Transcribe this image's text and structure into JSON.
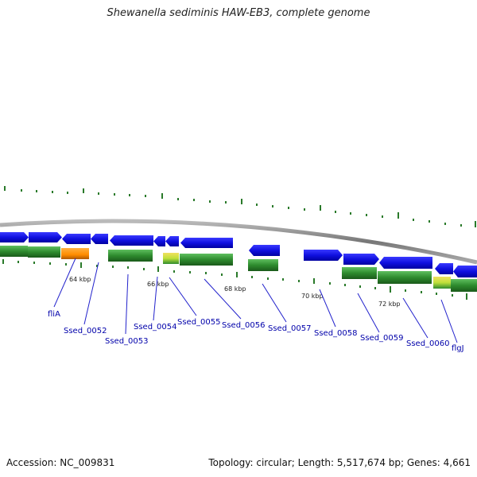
{
  "title": "Shewanella sediminis HAW-EB3, complete genome",
  "footer": {
    "accession": "Accession: NC_009831",
    "summary": "Topology: circular; Length: 5,517,674 bp; Genes: 4,661"
  },
  "kbp_marks": [
    {
      "label": "64 kbp"
    },
    {
      "label": "66 kbp"
    },
    {
      "label": "68 kbp"
    },
    {
      "label": "70 kbp"
    },
    {
      "label": "72 kbp"
    }
  ],
  "gene_labels": [
    {
      "label": "fliA"
    },
    {
      "label": "Ssed_0052"
    },
    {
      "label": "Ssed_0053"
    },
    {
      "label": "Ssed_0054"
    },
    {
      "label": "Ssed_0055"
    },
    {
      "label": "Ssed_0056"
    },
    {
      "label": "Ssed_0057"
    },
    {
      "label": "Ssed_0058"
    },
    {
      "label": "Ssed_0059"
    },
    {
      "label": "Ssed_0060"
    },
    {
      "label": "flgJ"
    }
  ],
  "colors": {
    "backbone": "#888888",
    "cds_forward": "#1a1ae0",
    "gene_reverse": "#2e8b2e",
    "highlight_orange": "#ff8c00",
    "highlight_yellow": "#ccdd44",
    "tick": "#2a7a2a",
    "label": "#0000aa"
  }
}
